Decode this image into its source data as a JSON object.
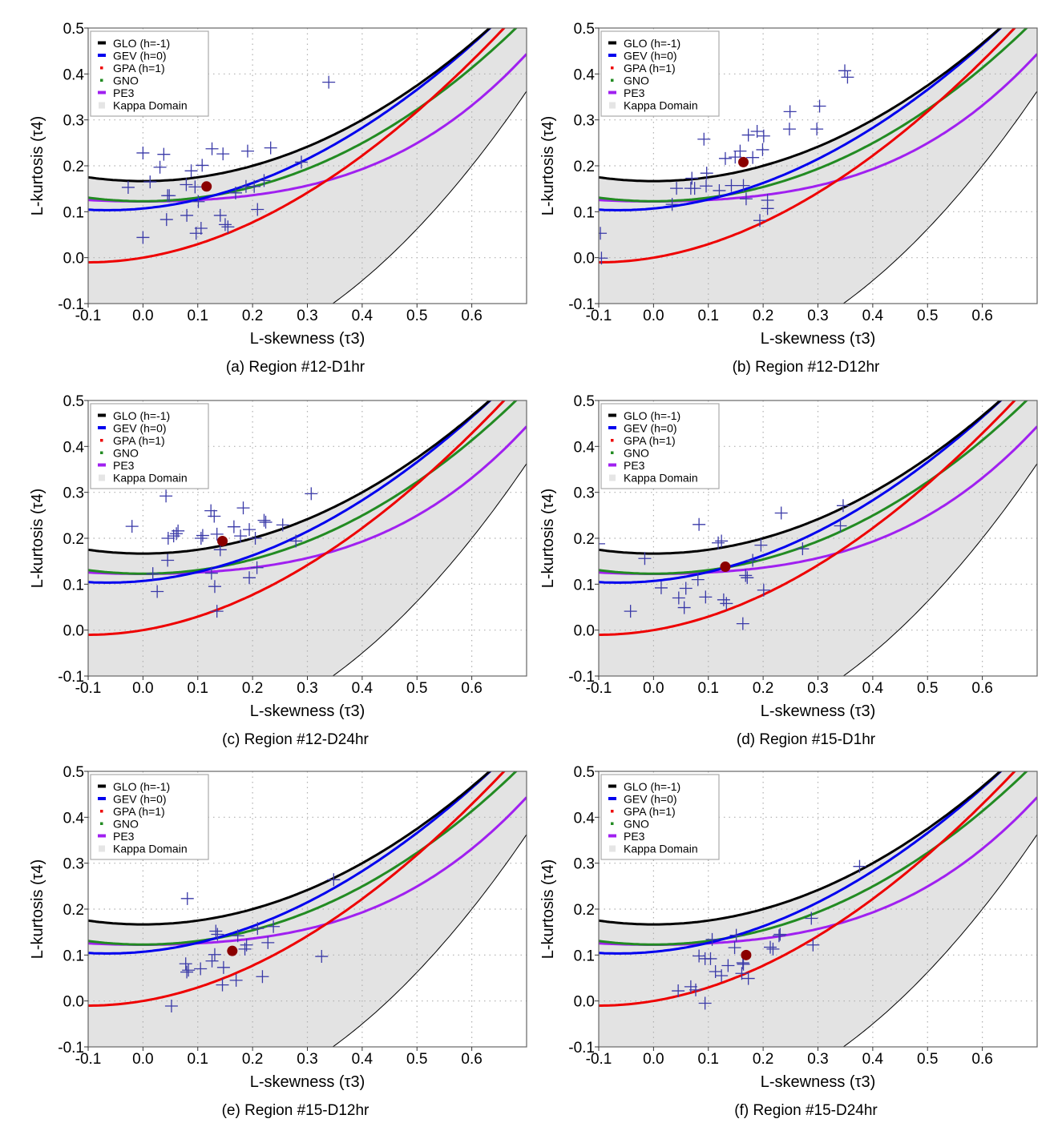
{
  "figure": {
    "legend_items": [
      {
        "label": "GLO (h=-1)",
        "color": "#000000",
        "kind": "line"
      },
      {
        "label": "GEV (h=0)",
        "color": "#0000ee",
        "kind": "line"
      },
      {
        "label": "GPA (h=1)",
        "color": "#ee0000",
        "kind": "dot"
      },
      {
        "label": "GNO",
        "color": "#228b22",
        "kind": "dot"
      },
      {
        "label": "PE3",
        "color": "#a020f0",
        "kind": "line"
      },
      {
        "label": "Kappa Domain",
        "color": "#e5e5e5",
        "kind": "square"
      }
    ],
    "colors": {
      "kappa_fill": "#e3e3e3",
      "point": "#3a3aa8",
      "mean": "#8b0000",
      "grid": "#b0b0b0",
      "axis": "#666666"
    }
  },
  "chart_data": [
    {
      "id": "a",
      "type": "scatter",
      "title": "(a) Region #12-D1hr",
      "xlabel": "L-skewness (τ3)",
      "ylabel": "L-kurtosis (τ4)",
      "xlim": [
        -0.1,
        0.7
      ],
      "ylim": [
        -0.1,
        0.5
      ],
      "xticks": [
        "-0.1",
        "0.0",
        "0.1",
        "0.2",
        "0.3",
        "0.4",
        "0.5",
        "0.6"
      ],
      "yticks": [
        "-0.1",
        "0.0",
        "0.1",
        "0.2",
        "0.3",
        "0.4",
        "0.5"
      ],
      "grid": true,
      "legend_position": "top-left",
      "curves": [
        "GLO (h=-1)",
        "GEV (h=0)",
        "GPA (h=1)",
        "GNO",
        "PE3",
        "Kappa Domain"
      ],
      "sites": [
        [
          0.0,
          0.228
        ],
        [
          0.038,
          0.225
        ],
        [
          0.031,
          0.197
        ],
        [
          -0.027,
          0.153
        ],
        [
          0.013,
          0.165
        ],
        [
          0.045,
          0.135
        ],
        [
          0.048,
          0.135
        ],
        [
          0.043,
          0.083
        ],
        [
          0.0,
          0.044
        ],
        [
          0.079,
          0.159
        ],
        [
          0.088,
          0.189
        ],
        [
          0.095,
          0.154
        ],
        [
          0.108,
          0.201
        ],
        [
          0.126,
          0.237
        ],
        [
          0.146,
          0.226
        ],
        [
          0.191,
          0.232
        ],
        [
          0.233,
          0.239
        ],
        [
          0.101,
          0.122
        ],
        [
          0.08,
          0.092
        ],
        [
          0.097,
          0.053
        ],
        [
          0.106,
          0.064
        ],
        [
          0.141,
          0.092
        ],
        [
          0.15,
          0.072
        ],
        [
          0.155,
          0.067
        ],
        [
          0.169,
          0.141
        ],
        [
          0.188,
          0.155
        ],
        [
          0.203,
          0.155
        ],
        [
          0.221,
          0.168
        ],
        [
          0.209,
          0.105
        ],
        [
          0.289,
          0.208
        ],
        [
          0.339,
          0.382
        ]
      ],
      "regional_mean": [
        0.116,
        0.155
      ]
    },
    {
      "id": "b",
      "type": "scatter",
      "title": "(b) Region #12-D12hr",
      "xlabel": "L-skewness (τ3)",
      "ylabel": "L-kurtosis (τ4)",
      "xlim": [
        -0.1,
        0.7
      ],
      "ylim": [
        -0.1,
        0.5
      ],
      "xticks": [
        "-0.1",
        "0.0",
        "0.1",
        "0.2",
        "0.3",
        "0.4",
        "0.5",
        "0.6"
      ],
      "yticks": [
        "-0.1",
        "0.0",
        "0.1",
        "0.2",
        "0.3",
        "0.4",
        "0.5"
      ],
      "grid": true,
      "legend_position": "top-left",
      "curves": [
        "GLO (h=-1)",
        "GEV (h=0)",
        "GPA (h=1)",
        "GNO",
        "PE3",
        "Kappa Domain"
      ],
      "sites": [
        [
          -0.097,
          0.053
        ],
        [
          -0.095,
          -0.001
        ],
        [
          0.034,
          0.116
        ],
        [
          0.042,
          0.151
        ],
        [
          0.07,
          0.173
        ],
        [
          0.068,
          0.151
        ],
        [
          0.075,
          0.151
        ],
        [
          0.092,
          0.258
        ],
        [
          0.097,
          0.184
        ],
        [
          0.096,
          0.156
        ],
        [
          0.12,
          0.146
        ],
        [
          0.131,
          0.216
        ],
        [
          0.142,
          0.157
        ],
        [
          0.149,
          0.219
        ],
        [
          0.158,
          0.232
        ],
        [
          0.164,
          0.157
        ],
        [
          0.169,
          0.128
        ],
        [
          0.181,
          0.218
        ],
        [
          0.173,
          0.267
        ],
        [
          0.189,
          0.275
        ],
        [
          0.201,
          0.265
        ],
        [
          0.199,
          0.235
        ],
        [
          0.208,
          0.125
        ],
        [
          0.208,
          0.107
        ],
        [
          0.194,
          0.081
        ],
        [
          0.249,
          0.318
        ],
        [
          0.248,
          0.28
        ],
        [
          0.298,
          0.28
        ],
        [
          0.303,
          0.33
        ],
        [
          0.349,
          0.407
        ],
        [
          0.354,
          0.393
        ]
      ],
      "regional_mean": [
        0.164,
        0.208
      ]
    },
    {
      "id": "c",
      "type": "scatter",
      "title": "(c) Region #12-D24hr",
      "xlabel": "L-skewness (τ3)",
      "ylabel": "L-kurtosis (τ4)",
      "xlim": [
        -0.1,
        0.7
      ],
      "ylim": [
        -0.1,
        0.5
      ],
      "xticks": [
        "-0.1",
        "0.0",
        "0.1",
        "0.2",
        "0.3",
        "0.4",
        "0.5",
        "0.6"
      ],
      "yticks": [
        "-0.1",
        "0.0",
        "0.1",
        "0.2",
        "0.3",
        "0.4",
        "0.5"
      ],
      "grid": true,
      "legend_position": "top-left",
      "curves": [
        "GLO (h=-1)",
        "GEV (h=0)",
        "GPA (h=1)",
        "GNO",
        "PE3",
        "Kappa Domain"
      ],
      "sites": [
        [
          -0.02,
          0.226
        ],
        [
          0.042,
          0.292
        ],
        [
          0.046,
          0.2
        ],
        [
          0.045,
          0.152
        ],
        [
          0.056,
          0.205
        ],
        [
          0.061,
          0.21
        ],
        [
          0.064,
          0.216
        ],
        [
          0.018,
          0.123
        ],
        [
          0.026,
          0.084
        ],
        [
          0.106,
          0.2
        ],
        [
          0.109,
          0.206
        ],
        [
          0.124,
          0.26
        ],
        [
          0.13,
          0.248
        ],
        [
          0.135,
          0.209
        ],
        [
          0.141,
          0.175
        ],
        [
          0.125,
          0.124
        ],
        [
          0.131,
          0.095
        ],
        [
          0.135,
          0.041
        ],
        [
          0.166,
          0.225
        ],
        [
          0.183,
          0.266
        ],
        [
          0.178,
          0.205
        ],
        [
          0.194,
          0.219
        ],
        [
          0.194,
          0.114
        ],
        [
          0.205,
          0.2
        ],
        [
          0.208,
          0.136
        ],
        [
          0.221,
          0.239
        ],
        [
          0.224,
          0.235
        ],
        [
          0.255,
          0.229
        ],
        [
          0.279,
          0.194
        ],
        [
          0.307,
          0.297
        ]
      ],
      "regional_mean": [
        0.145,
        0.194
      ]
    },
    {
      "id": "d",
      "type": "scatter",
      "title": "(d) Region #15-D1hr",
      "xlabel": "L-skewness (τ3)",
      "ylabel": "L-kurtosis (τ4)",
      "xlim": [
        -0.1,
        0.7
      ],
      "ylim": [
        -0.1,
        0.5
      ],
      "xticks": [
        "-0.1",
        "0.0",
        "0.1",
        "0.2",
        "0.3",
        "0.4",
        "0.5",
        "0.6"
      ],
      "yticks": [
        "-0.1",
        "0.0",
        "0.1",
        "0.2",
        "0.3",
        "0.4",
        "0.5"
      ],
      "grid": true,
      "legend_position": "top-left",
      "curves": [
        "GLO (h=-1)",
        "GEV (h=0)",
        "GPA (h=1)",
        "GNO",
        "PE3",
        "Kappa Domain"
      ],
      "sites": [
        [
          -0.1,
          0.188
        ],
        [
          -0.016,
          0.156
        ],
        [
          0.014,
          0.092
        ],
        [
          -0.042,
          0.041
        ],
        [
          0.046,
          0.07
        ],
        [
          0.056,
          0.049
        ],
        [
          0.059,
          0.091
        ],
        [
          0.095,
          0.072
        ],
        [
          0.083,
          0.23
        ],
        [
          0.081,
          0.11
        ],
        [
          0.118,
          0.19
        ],
        [
          0.124,
          0.194
        ],
        [
          0.128,
          0.066
        ],
        [
          0.133,
          0.058
        ],
        [
          0.163,
          0.014
        ],
        [
          0.168,
          0.119
        ],
        [
          0.171,
          0.114
        ],
        [
          0.181,
          0.152
        ],
        [
          0.196,
          0.185
        ],
        [
          0.201,
          0.087
        ],
        [
          0.233,
          0.255
        ],
        [
          0.272,
          0.177
        ],
        [
          0.341,
          0.227
        ],
        [
          0.346,
          0.271
        ]
      ],
      "regional_mean": [
        0.131,
        0.138
      ]
    },
    {
      "id": "e",
      "type": "scatter",
      "title": "(e) Region #15-D12hr",
      "xlabel": "L-skewness (τ3)",
      "ylabel": "L-kurtosis (τ4)",
      "xlim": [
        -0.1,
        0.7
      ],
      "ylim": [
        -0.1,
        0.5
      ],
      "xticks": [
        "-0.1",
        "0.0",
        "0.1",
        "0.2",
        "0.3",
        "0.4",
        "0.5",
        "0.6"
      ],
      "yticks": [
        "-0.1",
        "0.0",
        "0.1",
        "0.2",
        "0.3",
        "0.4",
        "0.5"
      ],
      "grid": true,
      "legend_position": "top-left",
      "curves": [
        "GLO (h=-1)",
        "GEV (h=0)",
        "GPA (h=1)",
        "GNO",
        "PE3",
        "Kappa Domain"
      ],
      "sites": [
        [
          0.081,
          0.223
        ],
        [
          0.078,
          0.081
        ],
        [
          0.08,
          0.063
        ],
        [
          0.083,
          0.067
        ],
        [
          0.105,
          0.07
        ],
        [
          0.126,
          0.087
        ],
        [
          0.131,
          0.101
        ],
        [
          0.133,
          0.152
        ],
        [
          0.136,
          0.145
        ],
        [
          0.147,
          0.073
        ],
        [
          0.145,
          0.035
        ],
        [
          0.17,
          0.045
        ],
        [
          0.173,
          0.142
        ],
        [
          0.186,
          0.113
        ],
        [
          0.189,
          0.122
        ],
        [
          0.218,
          0.053
        ],
        [
          0.228,
          0.127
        ],
        [
          0.209,
          0.158
        ],
        [
          0.238,
          0.162
        ],
        [
          0.052,
          -0.011
        ],
        [
          0.326,
          0.097
        ],
        [
          0.348,
          0.264
        ]
      ],
      "regional_mean": [
        0.163,
        0.109
      ]
    },
    {
      "id": "f",
      "type": "scatter",
      "title": "(f) Region #15-D24hr",
      "xlabel": "L-skewness (τ3)",
      "ylabel": "L-kurtosis (τ4)",
      "xlim": [
        -0.1,
        0.7
      ],
      "ylim": [
        -0.1,
        0.5
      ],
      "xticks": [
        "-0.1",
        "0.0",
        "0.1",
        "0.2",
        "0.3",
        "0.4",
        "0.5",
        "0.6"
      ],
      "yticks": [
        "-0.1",
        "0.0",
        "0.1",
        "0.2",
        "0.3",
        "0.4",
        "0.5"
      ],
      "grid": true,
      "legend_position": "top-left",
      "curves": [
        "GLO (h=-1)",
        "GEV (h=0)",
        "GPA (h=1)",
        "GNO",
        "PE3",
        "Kappa Domain"
      ],
      "sites": [
        [
          0.045,
          0.022
        ],
        [
          0.068,
          0.031
        ],
        [
          0.077,
          0.024
        ],
        [
          0.094,
          -0.005
        ],
        [
          0.083,
          0.098
        ],
        [
          0.094,
          0.092
        ],
        [
          0.104,
          0.092
        ],
        [
          0.107,
          0.134
        ],
        [
          0.113,
          0.064
        ],
        [
          0.124,
          0.055
        ],
        [
          0.136,
          0.077
        ],
        [
          0.148,
          0.116
        ],
        [
          0.151,
          0.143
        ],
        [
          0.163,
          0.083
        ],
        [
          0.164,
          0.08
        ],
        [
          0.161,
          0.06
        ],
        [
          0.173,
          0.049
        ],
        [
          0.213,
          0.117
        ],
        [
          0.218,
          0.113
        ],
        [
          0.229,
          0.142
        ],
        [
          0.231,
          0.145
        ],
        [
          0.288,
          0.18
        ],
        [
          0.291,
          0.122
        ],
        [
          0.376,
          0.293
        ]
      ],
      "regional_mean": [
        0.169,
        0.1
      ]
    }
  ]
}
